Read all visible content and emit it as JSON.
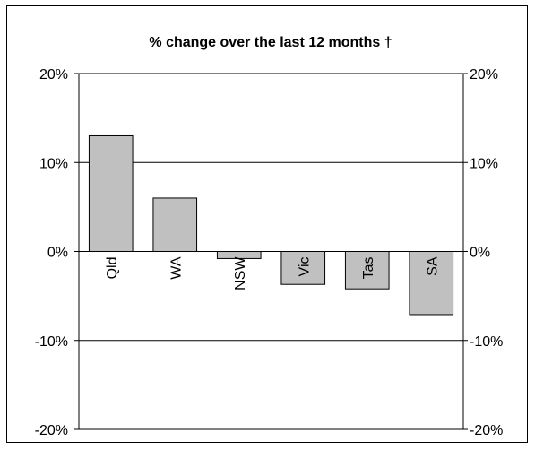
{
  "chart_data": {
    "type": "bar",
    "title": "% change over the last 12 months †",
    "categories": [
      "Qld",
      "WA",
      "NSW",
      "Vic",
      "Tas",
      "SA"
    ],
    "values": [
      13.0,
      6.0,
      -0.8,
      -3.7,
      -4.2,
      -7.1
    ],
    "ylim": [
      -20,
      20
    ],
    "yticks": [
      "20%",
      "10%",
      "0%",
      "-10%",
      "-20%"
    ],
    "ytick_values": [
      20,
      10,
      0,
      -10,
      -20
    ],
    "gridlines": true,
    "secondary_y_axis": true,
    "bar_color": "#c0c0c0",
    "bar_edge_color": "#000000",
    "xlabel": "",
    "ylabel": ""
  }
}
